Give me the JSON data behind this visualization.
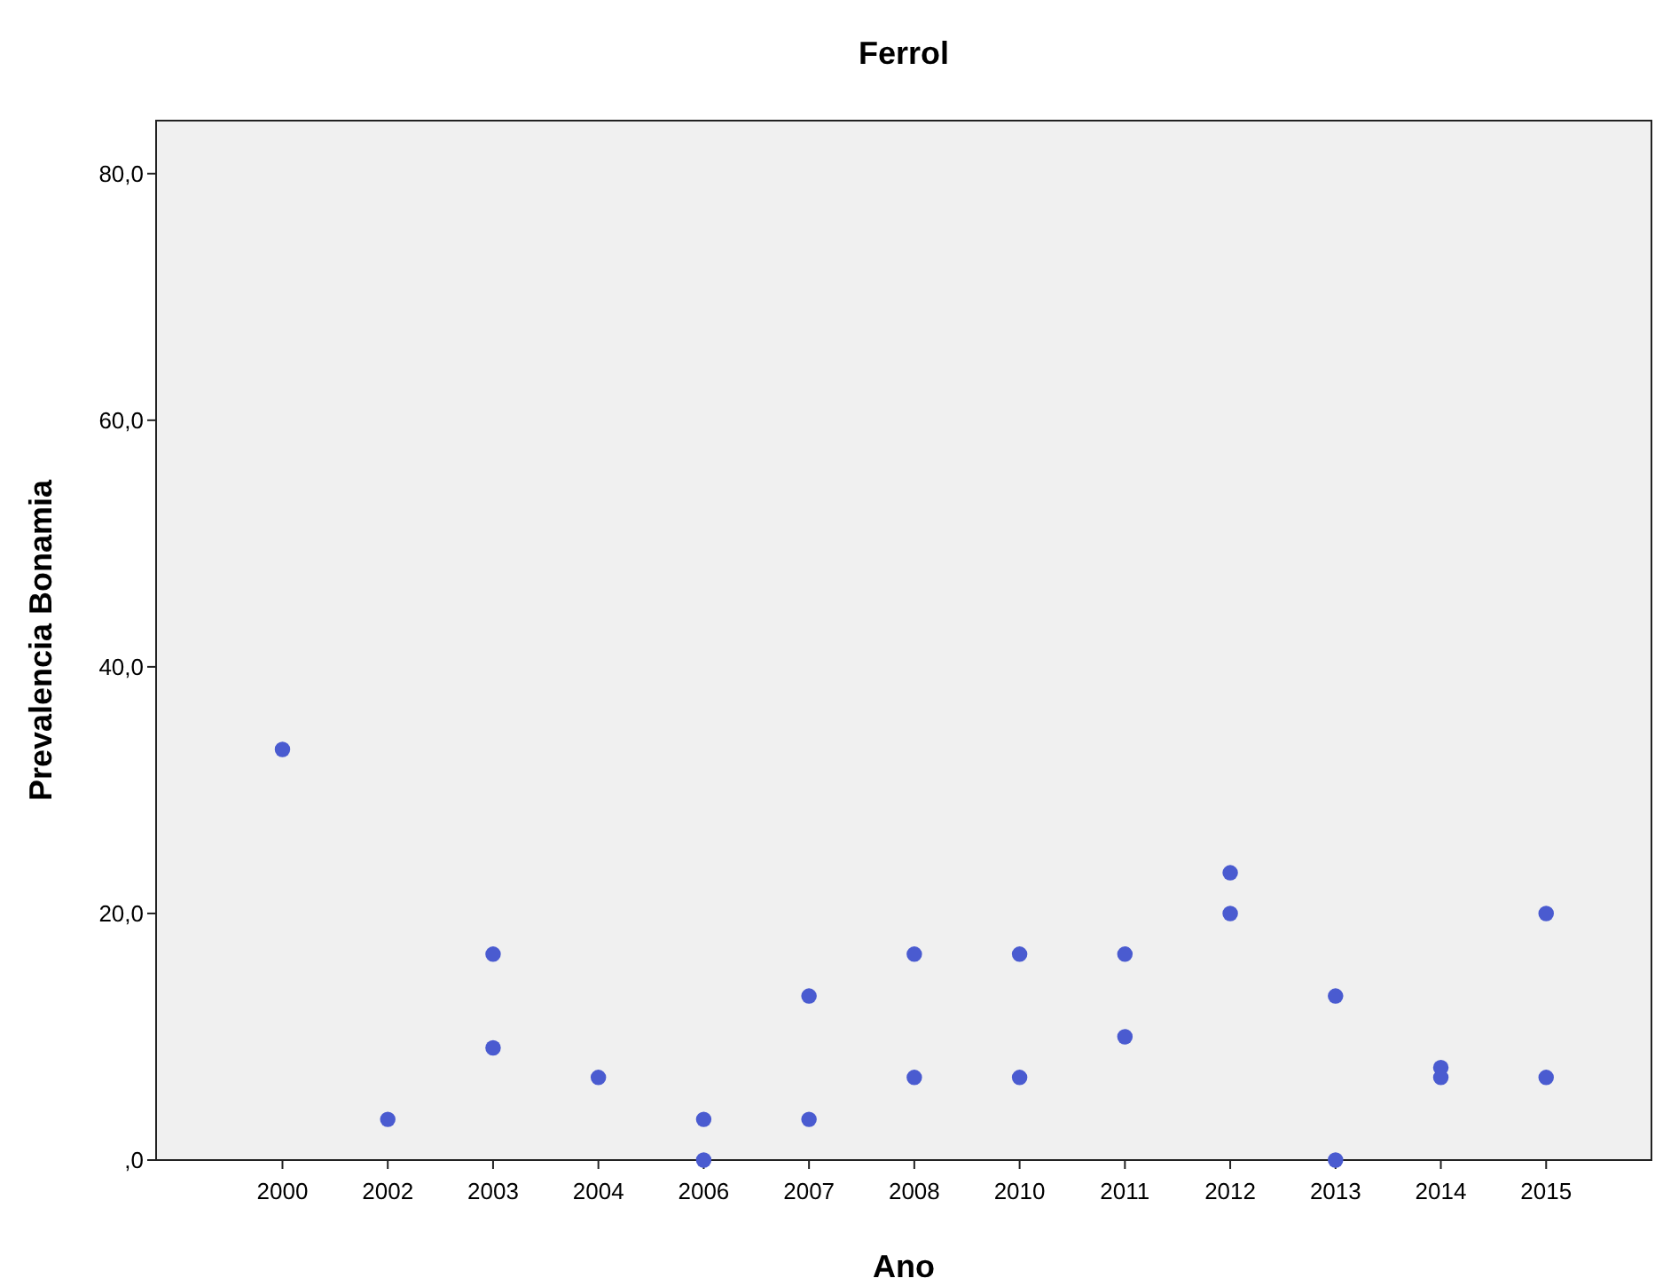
{
  "chart_data": {
    "type": "scatter",
    "title": "Ferrol",
    "xlabel": "Ano",
    "ylabel": "Prevalencia Bonamia",
    "categories": [
      "2000",
      "2002",
      "2003",
      "2004",
      "2006",
      "2007",
      "2008",
      "2010",
      "2011",
      "2012",
      "2013",
      "2014",
      "2015"
    ],
    "series": [
      {
        "color": "#4a5bd0",
        "values": [
          33.3,
          3.3,
          16.7,
          6.7,
          3.3,
          13.3,
          16.7,
          16.7,
          16.7,
          23.3,
          13.3,
          7.5,
          20.0
        ]
      },
      {
        "color": "#4a5bd0",
        "values": [
          null,
          null,
          9.1,
          null,
          0,
          3.3,
          6.7,
          6.7,
          10.0,
          20.0,
          0,
          6.7,
          6.7
        ]
      }
    ],
    "ylim": [
      0,
      84.3
    ],
    "yticks": [
      {
        "value": 0,
        "label": ",0"
      },
      {
        "value": 20,
        "label": "20,0"
      },
      {
        "value": 40,
        "label": "40,0"
      },
      {
        "value": 60,
        "label": "60,0"
      },
      {
        "value": 80,
        "label": "80,0"
      }
    ],
    "grid": false,
    "marker": "circle"
  }
}
